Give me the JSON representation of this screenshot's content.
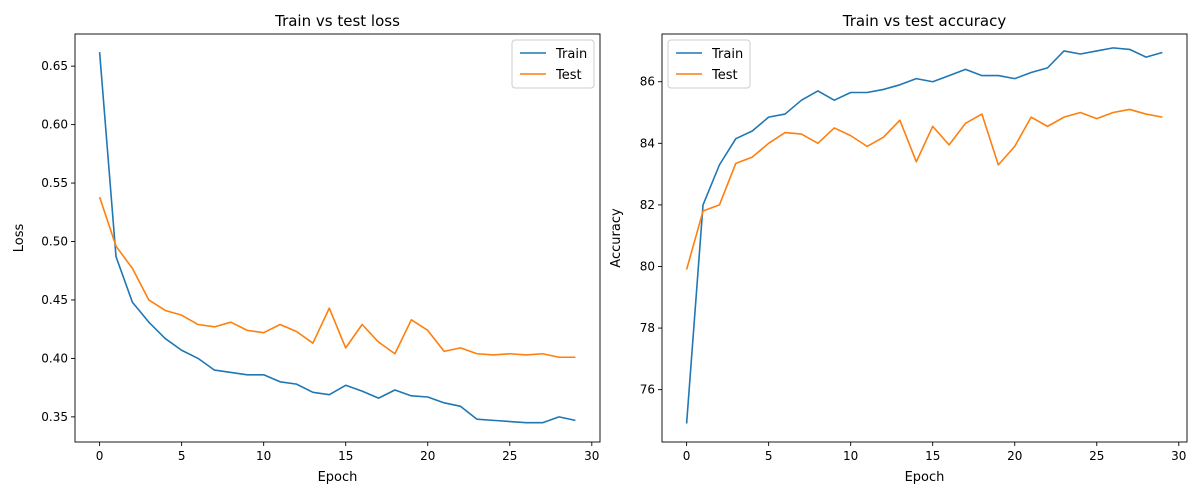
{
  "colors": {
    "train": "#1f77b4",
    "test": "#ff7f0e"
  },
  "chart_data": [
    {
      "type": "line",
      "title": "Train vs test loss",
      "xlabel": "Epoch",
      "ylabel": "Loss",
      "xlim": [
        -1.5,
        30.5
      ],
      "ylim": [
        0.3285,
        0.6775
      ],
      "xticks": [
        0,
        5,
        10,
        15,
        20,
        25,
        30
      ],
      "yticks": [
        0.35,
        0.4,
        0.45,
        0.5,
        0.55,
        0.6,
        0.65
      ],
      "ytick_decimals": 2,
      "legend": "top-right",
      "grid": false,
      "x": [
        0,
        1,
        2,
        3,
        4,
        5,
        6,
        7,
        8,
        9,
        10,
        11,
        12,
        13,
        14,
        15,
        16,
        17,
        18,
        19,
        20,
        21,
        22,
        23,
        24,
        25,
        26,
        27,
        28,
        29
      ],
      "series": [
        {
          "name": "Train",
          "color": "#1f77b4",
          "values": [
            0.662,
            0.487,
            0.448,
            0.431,
            0.417,
            0.407,
            0.4,
            0.39,
            0.388,
            0.386,
            0.386,
            0.38,
            0.378,
            0.371,
            0.369,
            0.377,
            0.372,
            0.366,
            0.373,
            0.368,
            0.367,
            0.362,
            0.359,
            0.348,
            0.347,
            0.346,
            0.345,
            0.345,
            0.35,
            0.347
          ]
        },
        {
          "name": "Test",
          "color": "#ff7f0e",
          "values": [
            0.538,
            0.496,
            0.477,
            0.45,
            0.441,
            0.437,
            0.429,
            0.427,
            0.431,
            0.424,
            0.422,
            0.429,
            0.423,
            0.413,
            0.443,
            0.409,
            0.429,
            0.414,
            0.404,
            0.433,
            0.424,
            0.406,
            0.409,
            0.404,
            0.403,
            0.404,
            0.403,
            0.404,
            0.401,
            0.401
          ]
        }
      ]
    },
    {
      "type": "line",
      "title": "Train vs test accuracy",
      "xlabel": "Epoch",
      "ylabel": "Accuracy",
      "xlim": [
        -1.5,
        30.5
      ],
      "ylim": [
        74.3,
        87.55
      ],
      "xticks": [
        0,
        5,
        10,
        15,
        20,
        25,
        30
      ],
      "yticks": [
        76,
        78,
        80,
        82,
        84,
        86
      ],
      "ytick_decimals": 0,
      "legend": "top-left",
      "grid": false,
      "x": [
        0,
        1,
        2,
        3,
        4,
        5,
        6,
        7,
        8,
        9,
        10,
        11,
        12,
        13,
        14,
        15,
        16,
        17,
        18,
        19,
        20,
        21,
        22,
        23,
        24,
        25,
        26,
        27,
        28,
        29
      ],
      "series": [
        {
          "name": "Train",
          "color": "#1f77b4",
          "values": [
            74.9,
            82.0,
            83.3,
            84.15,
            84.4,
            84.85,
            84.95,
            85.4,
            85.7,
            85.4,
            85.65,
            85.65,
            85.75,
            85.9,
            86.1,
            86.0,
            86.2,
            86.4,
            86.2,
            86.2,
            86.1,
            86.3,
            86.45,
            87.0,
            86.9,
            87.0,
            87.1,
            87.05,
            86.8,
            86.95
          ]
        },
        {
          "name": "Test",
          "color": "#ff7f0e",
          "values": [
            79.9,
            81.8,
            82.0,
            83.35,
            83.55,
            84.0,
            84.35,
            84.3,
            84.0,
            84.5,
            84.25,
            83.9,
            84.2,
            84.75,
            83.4,
            84.55,
            83.95,
            84.65,
            84.95,
            83.3,
            83.9,
            84.85,
            84.55,
            84.85,
            85.0,
            84.8,
            85.0,
            85.1,
            84.95,
            84.85
          ]
        }
      ]
    }
  ]
}
